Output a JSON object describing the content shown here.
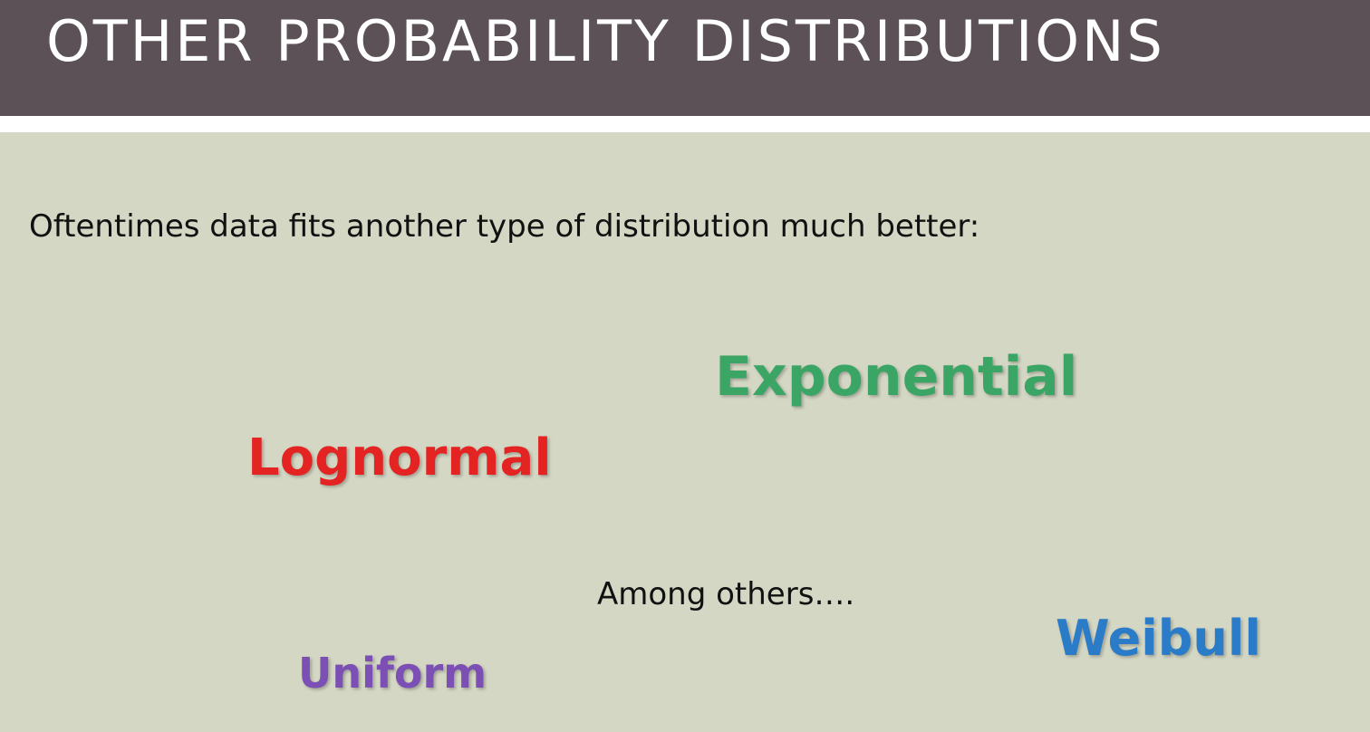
{
  "slide": {
    "title": "OTHER PROBABILITY DISTRIBUTIONS",
    "intro": "Oftentimes data fits another type of distribution much better:",
    "distributions": [
      {
        "label": "Exponential",
        "color": "#3aa565"
      },
      {
        "label": "Lognormal",
        "color": "#e32422"
      },
      {
        "label": "Weibull",
        "color": "#2a7bc8"
      },
      {
        "label": "Uniform",
        "color": "#7b4fb3"
      }
    ],
    "note": "Among others…."
  },
  "colors": {
    "title_bar": "#5b5156",
    "background": "#d4d7c4",
    "text": "#111111"
  }
}
